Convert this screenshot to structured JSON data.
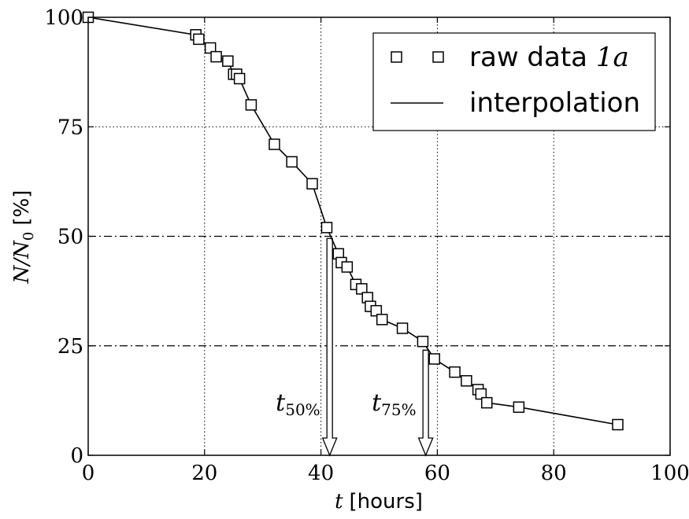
{
  "chart_data": {
    "type": "line",
    "xlabel": {
      "var": "t",
      "unit": "[hours]"
    },
    "ylabel": {
      "var": "N",
      "sub": "0",
      "unit": "[%]"
    },
    "xlim": [
      0,
      100
    ],
    "ylim": [
      0,
      100
    ],
    "x_ticks": [
      "0",
      "20",
      "40",
      "60",
      "80",
      "100"
    ],
    "y_ticks": [
      "0",
      "25",
      "50",
      "75",
      "100"
    ],
    "grid": true,
    "legend_position": "top-right",
    "series": [
      {
        "name": "raw data 1a",
        "marker": "square",
        "line": "solid",
        "x": [
          0,
          18.5,
          19,
          21,
          22,
          24,
          25,
          25.5,
          26,
          28,
          32,
          35,
          38.5,
          41,
          43,
          43.5,
          44.5,
          46,
          47,
          48,
          48.5,
          49.5,
          50.5,
          54,
          57.5,
          59.5,
          63,
          65,
          67,
          67.5,
          68.5,
          74,
          91
        ],
        "y": [
          100,
          96,
          95,
          93,
          91,
          90,
          87,
          87,
          86,
          80,
          71,
          67,
          62,
          52,
          46,
          44,
          43,
          39,
          38,
          36,
          34,
          33,
          31,
          29,
          26,
          22,
          19,
          17,
          15,
          14,
          12,
          11,
          7
        ]
      }
    ],
    "legend": {
      "raw_label": "raw data ",
      "raw_suffix": "1a",
      "interp_label": "interpolation"
    },
    "annotations": [
      {
        "text": "t",
        "sub": "50%",
        "x": 41.5,
        "y_top": 49.5
      },
      {
        "text": "t",
        "sub": "75%",
        "x": 58,
        "y_top": 24
      }
    ],
    "reference_lines_y": [
      50,
      25
    ]
  }
}
